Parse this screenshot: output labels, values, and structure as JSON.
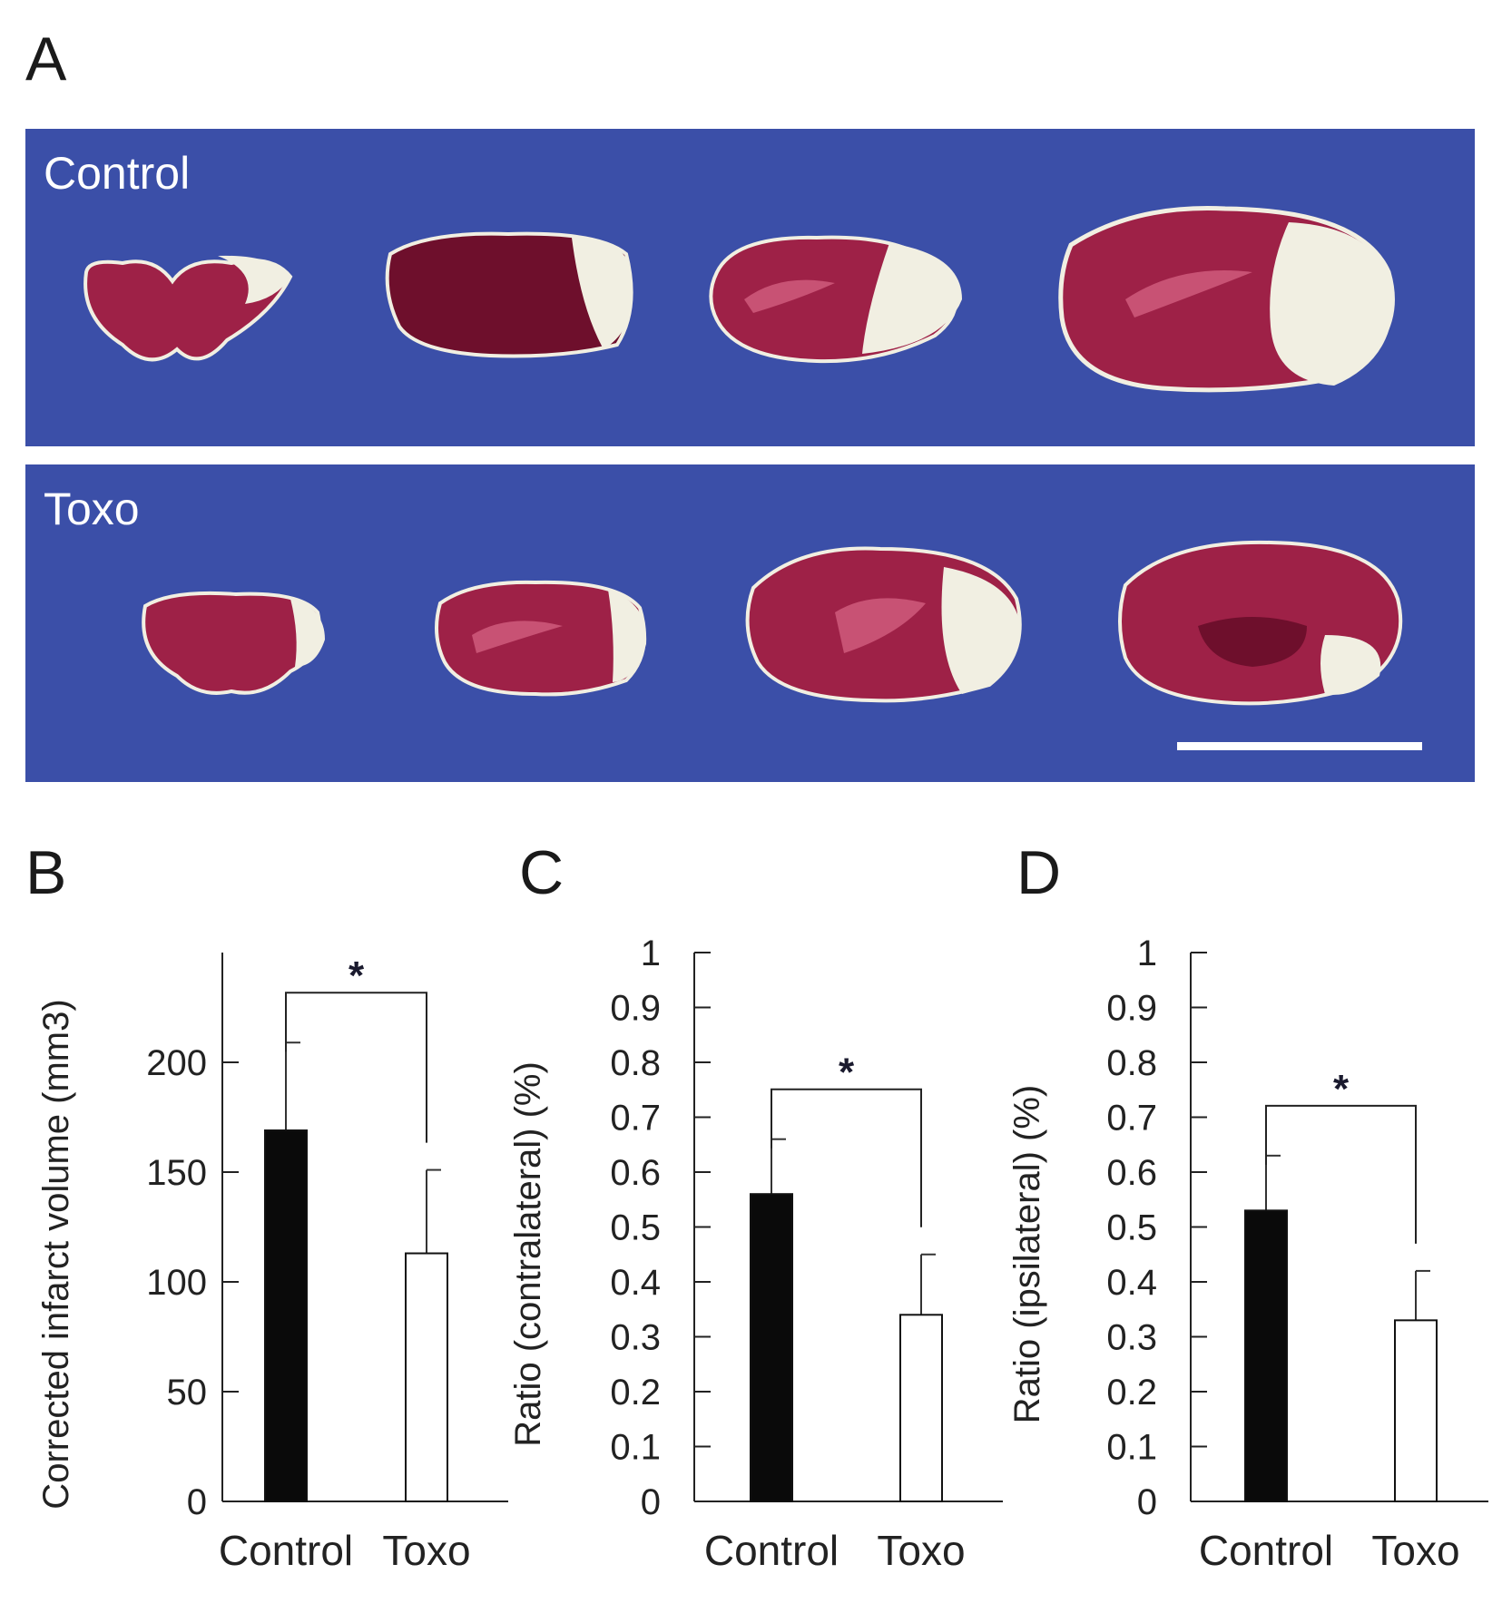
{
  "panels": {
    "a": {
      "letter": "A",
      "top_label": "Control",
      "bottom_label": "Toxo"
    },
    "b": {
      "letter": "B"
    },
    "c": {
      "letter": "C"
    },
    "d": {
      "letter": "D"
    }
  },
  "colors": {
    "photo_background": "#3b4fa8",
    "tissue_stained": "#9e2147",
    "tissue_dark": "#6e0f2c",
    "tissue_infarct": "#f1efe2",
    "bar_control": "#0a0a0a",
    "bar_toxo": "#ffffff"
  },
  "chart_data": [
    {
      "panel": "B",
      "type": "bar",
      "categories": [
        "Control",
        "Toxo"
      ],
      "values": [
        169,
        113
      ],
      "errors": [
        40,
        38
      ],
      "ylabel": "Corrected infarct volume (mm3)",
      "ylim": [
        0,
        250
      ],
      "yticks": [
        "0",
        "50",
        "100",
        "150",
        "200"
      ],
      "significance": "*",
      "grid": false
    },
    {
      "panel": "C",
      "type": "bar",
      "categories": [
        "Control",
        "Toxo"
      ],
      "values": [
        0.56,
        0.34
      ],
      "errors": [
        0.1,
        0.11
      ],
      "ylabel": "Ratio (contralateral) (%)",
      "ylim": [
        0,
        1
      ],
      "yticks": [
        "0",
        "0.1",
        "0.2",
        "0.3",
        "0.4",
        "0.5",
        "0.6",
        "0.7",
        "0.8",
        "0.9",
        "1"
      ],
      "significance": "*",
      "grid": false
    },
    {
      "panel": "D",
      "type": "bar",
      "categories": [
        "Control",
        "Toxo"
      ],
      "values": [
        0.53,
        0.33
      ],
      "errors": [
        0.1,
        0.09
      ],
      "ylabel": "Ratio (ipsilateral) (%)",
      "ylim": [
        0,
        1
      ],
      "yticks": [
        "0",
        "0.1",
        "0.2",
        "0.3",
        "0.4",
        "0.5",
        "0.6",
        "0.7",
        "0.8",
        "0.9",
        "1"
      ],
      "significance": "*",
      "grid": false
    }
  ]
}
